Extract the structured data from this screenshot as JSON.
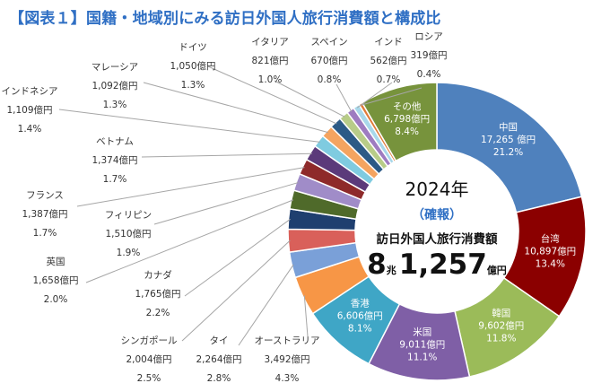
{
  "chart_data": {
    "type": "pie",
    "subtype": "donut",
    "title": "【図表１】国籍・地域別にみる訪日外国人旅行消費額と構成比",
    "center": {
      "year": "2024年",
      "status": "（確報）",
      "caption": "訪日外国人旅行消費額",
      "total_main": "8",
      "total_unit_big": "兆",
      "total_rest": "1,257",
      "total_unit_small": "億円"
    },
    "unit": "億円",
    "slices": [
      {
        "name": "中国",
        "value": 17265,
        "value_text": "17,265 億円",
        "pct": 21.2,
        "pct_text": "21.2%",
        "color": "#4f81bd"
      },
      {
        "name": "台湾",
        "value": 10897,
        "value_text": "10,897億円",
        "pct": 13.4,
        "pct_text": "13.4%",
        "color": "#8b0000"
      },
      {
        "name": "韓国",
        "value": 9602,
        "value_text": "9,602億円",
        "pct": 11.8,
        "pct_text": "11.8%",
        "color": "#9bbb59"
      },
      {
        "name": "米国",
        "value": 9011,
        "value_text": "9,011億円",
        "pct": 11.1,
        "pct_text": "11.1%",
        "color": "#7f5fa6"
      },
      {
        "name": "香港",
        "value": 6606,
        "value_text": "6,606億円",
        "pct": 8.1,
        "pct_text": "8.1%",
        "color": "#3fa6c6"
      },
      {
        "name": "オーストラリア",
        "value": 3492,
        "value_text": "3,492億円",
        "pct": 4.3,
        "pct_text": "4.3%",
        "color": "#f79646"
      },
      {
        "name": "タイ",
        "value": 2264,
        "value_text": "2,264億円",
        "pct": 2.8,
        "pct_text": "2.8%",
        "color": "#7aa0d8"
      },
      {
        "name": "シンガポール",
        "value": 2004,
        "value_text": "2,004億円",
        "pct": 2.5,
        "pct_text": "2.5%",
        "color": "#d9605a"
      },
      {
        "name": "カナダ",
        "value": 1765,
        "value_text": "1,765億円",
        "pct": 2.2,
        "pct_text": "2.2%",
        "color": "#1f3f6f"
      },
      {
        "name": "英国",
        "value": 1658,
        "value_text": "1,658億円",
        "pct": 2.0,
        "pct_text": "2.0%",
        "color": "#4f6a2a"
      },
      {
        "name": "フィリピン",
        "value": 1510,
        "value_text": "1,510億円",
        "pct": 1.9,
        "pct_text": "1.9%",
        "color": "#a08cc8"
      },
      {
        "name": "フランス",
        "value": 1387,
        "value_text": "1,387億円",
        "pct": 1.7,
        "pct_text": "1.7%",
        "color": "#8e2a2a"
      },
      {
        "name": "ベトナム",
        "value": 1374,
        "value_text": "1,374億円",
        "pct": 1.7,
        "pct_text": "1.7%",
        "color": "#5b3a7a"
      },
      {
        "name": "インドネシア",
        "value": 1109,
        "value_text": "1,109億円",
        "pct": 1.4,
        "pct_text": "1.4%",
        "color": "#7fcbe0"
      },
      {
        "name": "マレーシア",
        "value": 1092,
        "value_text": "1,092億円",
        "pct": 1.3,
        "pct_text": "1.3%",
        "color": "#f4a460"
      },
      {
        "name": "ドイツ",
        "value": 1050,
        "value_text": "1,050億円",
        "pct": 1.3,
        "pct_text": "1.3%",
        "color": "#2c5a86"
      },
      {
        "name": "イタリア",
        "value": 821,
        "value_text": "821億円",
        "pct": 1.0,
        "pct_text": "1.0%",
        "color": "#b8cc88"
      },
      {
        "name": "スペイン",
        "value": 670,
        "value_text": "670億円",
        "pct": 0.8,
        "pct_text": "0.8%",
        "color": "#9e7cc0"
      },
      {
        "name": "インド",
        "value": 562,
        "value_text": "562億円",
        "pct": 0.7,
        "pct_text": "0.7%",
        "color": "#a8d8ea"
      },
      {
        "name": "ロシア",
        "value": 319,
        "value_text": "319億円",
        "pct": 0.4,
        "pct_text": "0.4%",
        "color": "#e07b39"
      },
      {
        "name": "その他",
        "value": 6798,
        "value_text": "6,798億円",
        "pct": 8.4,
        "pct_text": "8.4%",
        "color": "#77933c"
      }
    ]
  }
}
